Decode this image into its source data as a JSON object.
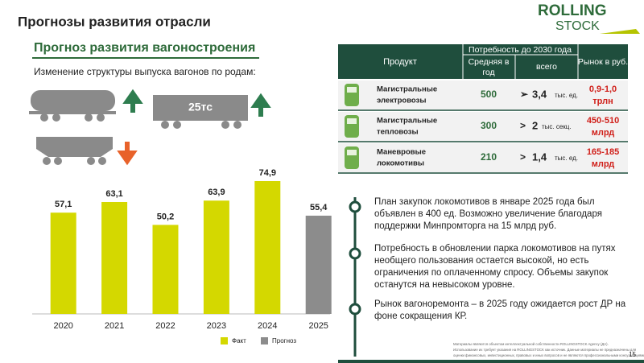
{
  "header": {
    "title": "Прогнозы развития отрасли",
    "logo": [
      "ROLLING",
      "STOCK"
    ]
  },
  "section": {
    "title": "Прогноз развития вагоностроения",
    "subtitle": "Изменение структуры выпуска вагонов по родам:",
    "wagon_label": "25тс"
  },
  "chart_data": {
    "type": "bar",
    "categories": [
      "2020",
      "2021",
      "2022",
      "2023",
      "2024",
      "2025"
    ],
    "series": [
      {
        "name": "Факт",
        "color": "#d4d800",
        "values": [
          57.1,
          63.1,
          50.2,
          63.9,
          74.9,
          null
        ],
        "value_labels": [
          "57,1",
          "63,1",
          "50,2",
          "63,9",
          "74,9",
          null
        ]
      },
      {
        "name": "Прогноз",
        "color": "#8c8c8c",
        "values": [
          null,
          null,
          null,
          null,
          null,
          55.4
        ],
        "value_labels": [
          null,
          null,
          null,
          null,
          null,
          "55,4"
        ]
      }
    ]
  },
  "table": {
    "headers": {
      "product": "Продукт",
      "need": "Потребность до 2030 года",
      "avg": [
        "Средняя в",
        "год"
      ],
      "total": "всего",
      "market": "Рынок в руб."
    },
    "rows": [
      {
        "product": [
          "Магистральные",
          "электровозы"
        ],
        "avg": 500,
        "sign": "➢",
        "total": "3,4",
        "unit": "тыс. ед.",
        "market": [
          "0,9-1,0",
          "трлн"
        ]
      },
      {
        "product": [
          "Магистральные",
          "тепловозы"
        ],
        "avg": 300,
        "sign": ">",
        "total": "2",
        "unit": "тыс. секц.",
        "market": [
          "450-510",
          "млрд"
        ]
      },
      {
        "product": [
          "Маневровые",
          "локомотивы"
        ],
        "avg": 210,
        "sign": ">",
        "total": "1,4",
        "unit": "тыс. ед.",
        "market": [
          "165-185",
          "млрд"
        ]
      }
    ]
  },
  "bullets": [
    [
      "План закупок локомотивов в январе 2025 года был",
      "объявлен в 400 ед. Возможно увеличение благодаря",
      "поддержки Минпромторга на 15 млрд руб."
    ],
    [
      "Потребность в обновлении парка локомотивов на путях",
      "необщего пользования остается высокой, но есть",
      "ограничения по оплаченному спросу. Объемы закупок",
      "останутся на невысоком уровне."
    ],
    [
      "Рынок вагоноремонта – в 2025 году ожидается рост ДР на",
      "фоне сокращения КР."
    ]
  ],
  "footnote": [
    "Материалы являются объектом интеллектуальной собственности ROLLINGSTOCK Agency (ДА).",
    "Использование их требует указания на ROLLINGSTOCK как источник. Данные материалы не предназначены для",
    "оценки финансовых, инвестиционных, правовых и иных вопросов и не являются профессиональными консультациями."
  ],
  "page": "15"
}
